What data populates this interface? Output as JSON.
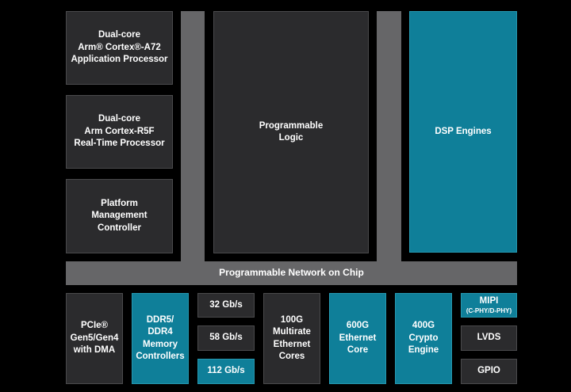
{
  "processors": {
    "apu": "Dual-core\nArm® Cortex®-A72\nApplication Processor",
    "rpu": "Dual-core\nArm Cortex-R5F\nReal-Time Processor",
    "pmc": "Platform\nManagement\nController"
  },
  "programmable_logic": "Programmable\nLogic",
  "dsp_engines": "DSP Engines",
  "noc": "Programmable Network on Chip",
  "io": {
    "pcie": "PCIe®\nGen5/Gen4\nwith DMA",
    "ddr": "DDR5/\nDDR4\nMemory\nControllers",
    "serdes_32": "32 Gb/s",
    "serdes_58": "58 Gb/s",
    "serdes_112": "112 Gb/s",
    "multirate_ethernet": "100G\nMultirate\nEthernet\nCores",
    "ethernet_600g": "600G\nEthernet\nCore",
    "crypto_400g": "400G\nCrypto\nEngine",
    "mipi_title": "MIPI",
    "mipi_sub": "(C-PHY/D-PHY)",
    "lvds": "LVDS",
    "gpio": "GPIO"
  },
  "colors": {
    "background": "#000000",
    "dark_block": "#2b2b2d",
    "teal_block": "#0f7f99",
    "interconnect": "#666668"
  }
}
